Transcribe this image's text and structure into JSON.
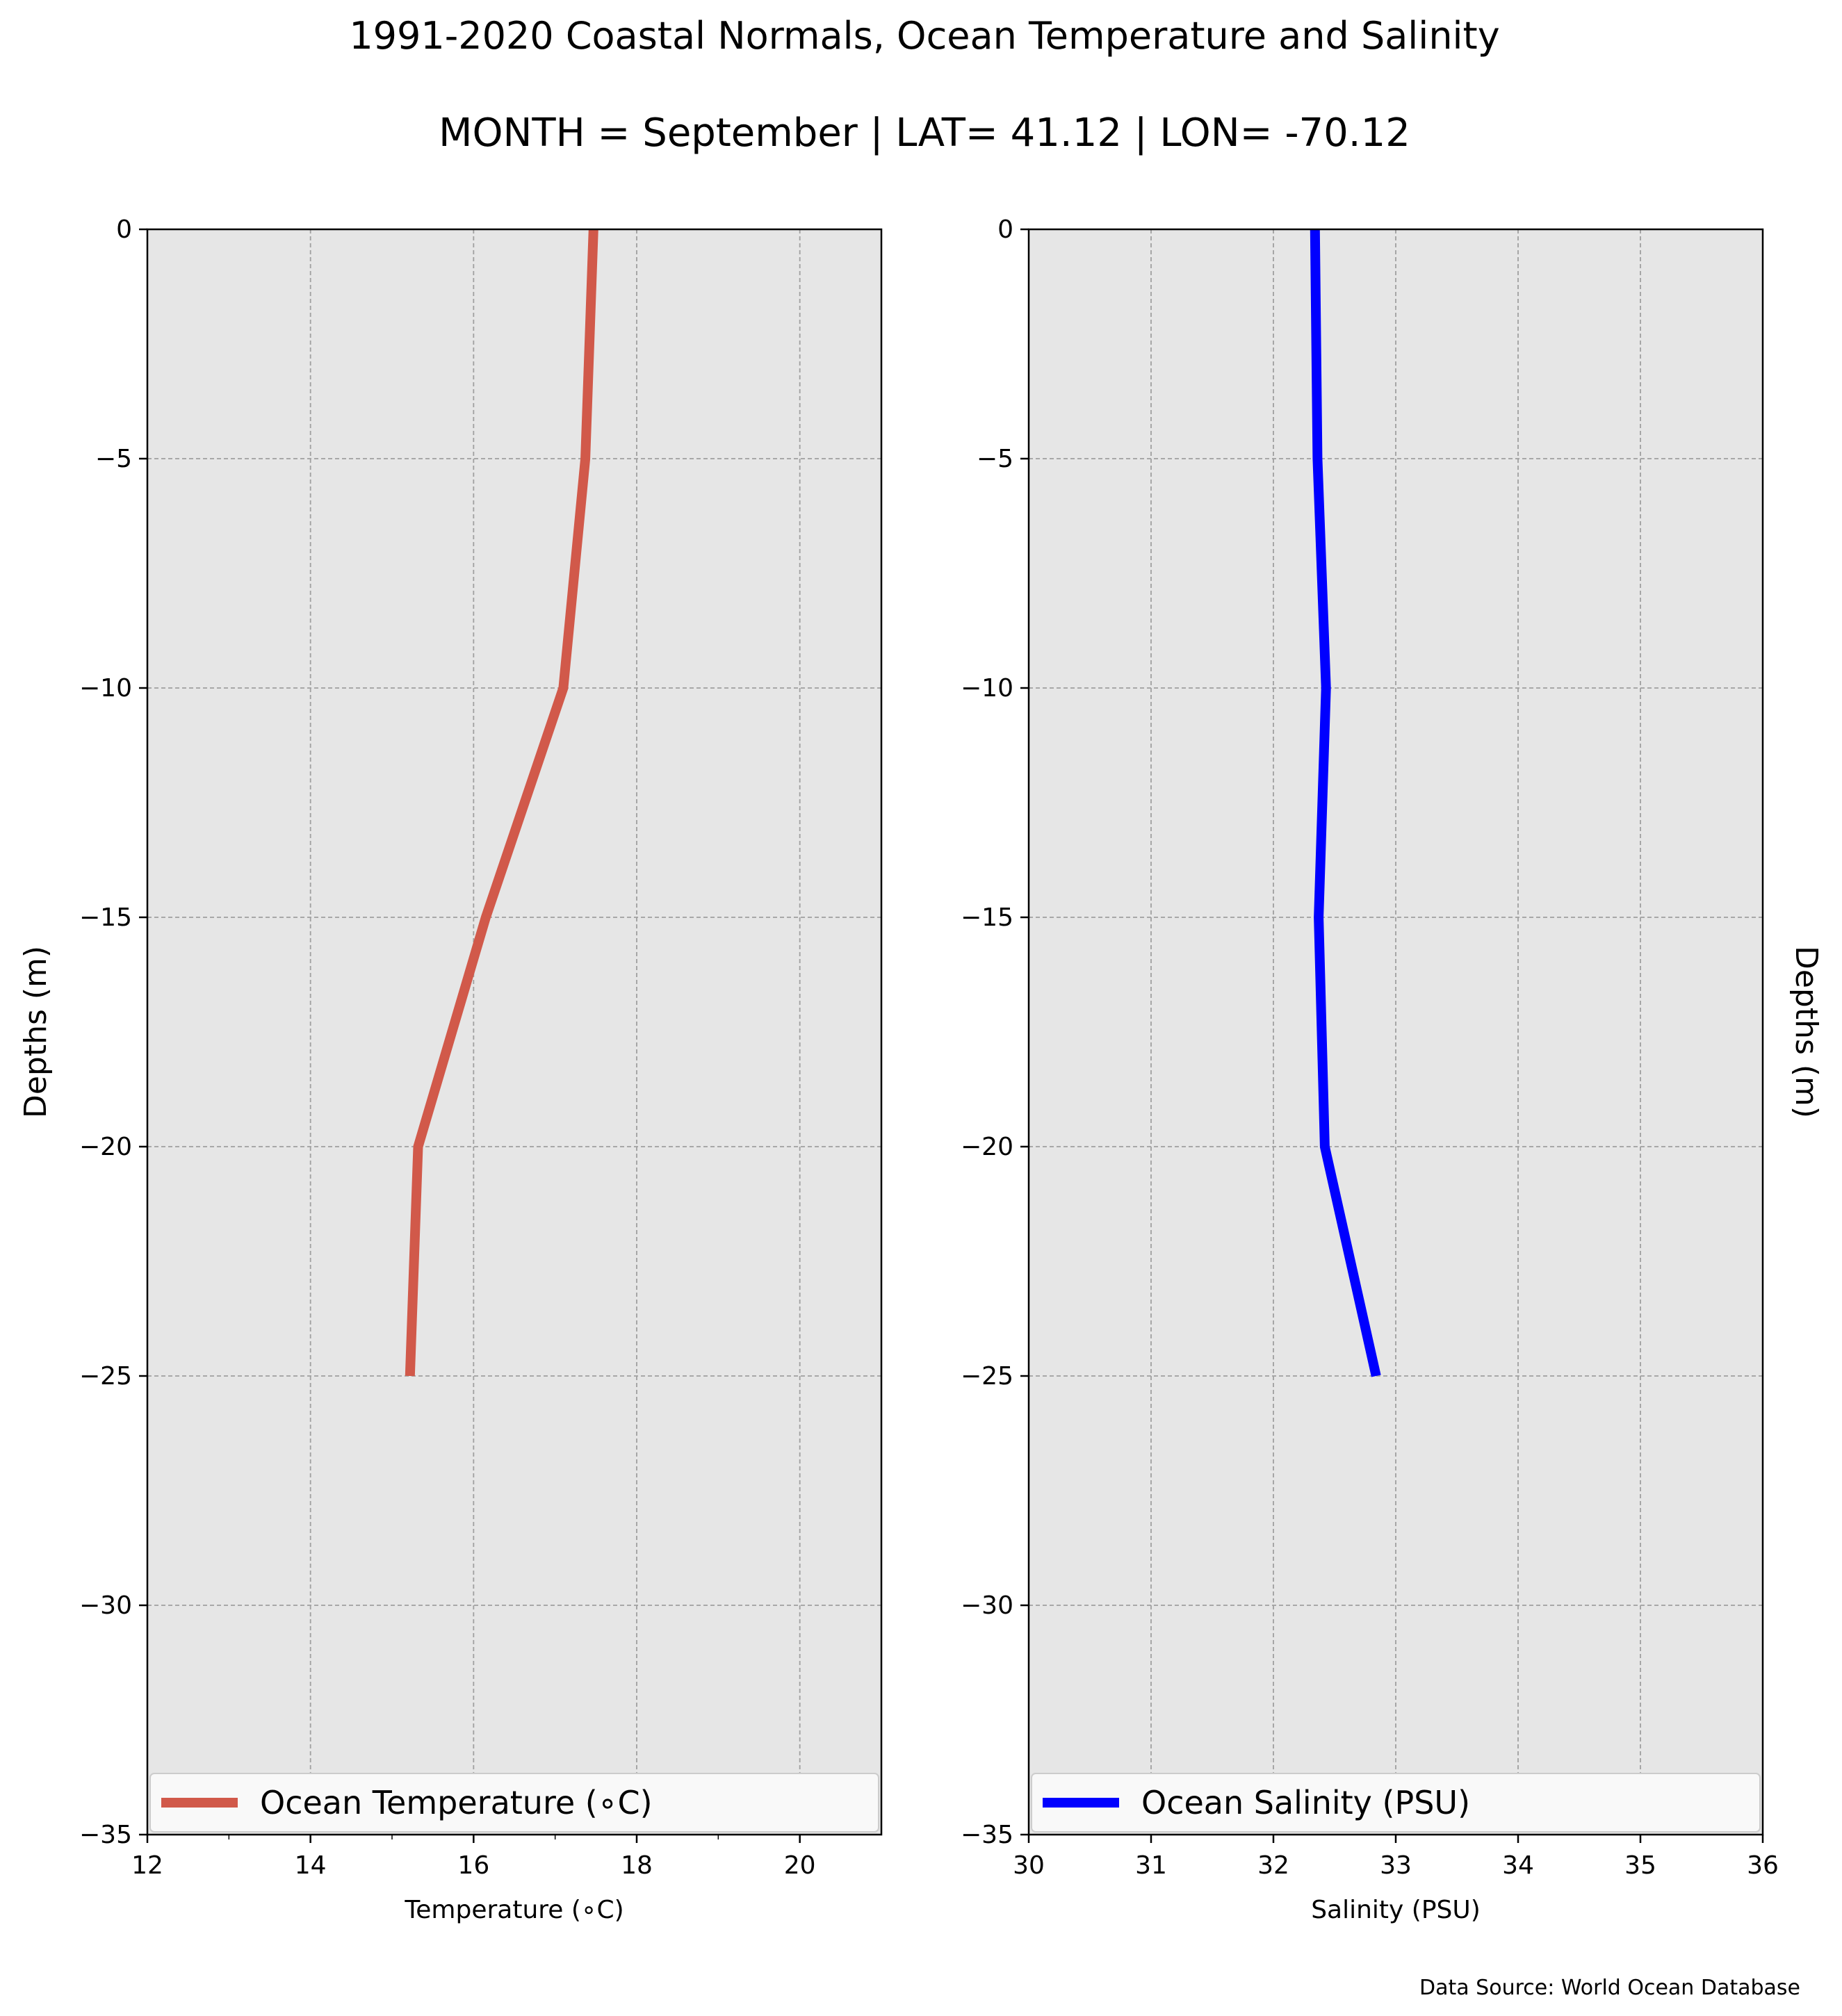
{
  "figure": {
    "title_line1": "1991-2020 Coastal Normals, Ocean Temperature and Salinity",
    "title_line2": "MONTH = September | LAT= 41.12 | LON= -70.12",
    "source_note": "Data Source: World Ocean Database"
  },
  "chart_data": [
    {
      "type": "line",
      "xlabel": "Temperature (∘C)",
      "ylabel": "Depths (m)",
      "xlim": [
        12,
        21
      ],
      "ylim": [
        -35,
        0
      ],
      "xticks": [
        12,
        14,
        16,
        18,
        20
      ],
      "xtick_labels": [
        "12",
        "14",
        "16",
        "18",
        "20"
      ],
      "yticks": [
        0,
        -5,
        -10,
        -15,
        -20,
        -25,
        -30,
        -35
      ],
      "ytick_labels": [
        "0",
        "−5",
        "−10",
        "−15",
        "−20",
        "−25",
        "−30",
        "−35"
      ],
      "grid": true,
      "legend_location": "lower-center",
      "series": [
        {
          "name": "Ocean Temperature (∘C)",
          "color": "#d1594a",
          "x": [
            17.47,
            17.37,
            17.1,
            16.15,
            15.32,
            15.22
          ],
          "y": [
            0,
            -5,
            -10,
            -15,
            -20,
            -25
          ]
        }
      ]
    },
    {
      "type": "line",
      "xlabel": "Salinity (PSU)",
      "ylabel": "Depths (m)",
      "xlim": [
        30,
        36
      ],
      "ylim": [
        -35,
        0
      ],
      "xticks": [
        30,
        31,
        32,
        33,
        34,
        35,
        36
      ],
      "xtick_labels": [
        "30",
        "31",
        "32",
        "33",
        "34",
        "35",
        "36"
      ],
      "yticks": [
        0,
        -5,
        -10,
        -15,
        -20,
        -25,
        -30,
        -35
      ],
      "ytick_labels": [
        "0",
        "−5",
        "−10",
        "−15",
        "−20",
        "−25",
        "−30",
        "−35"
      ],
      "grid": true,
      "legend_location": "lower-center",
      "series": [
        {
          "name": "Ocean Salinity (PSU)",
          "color": "#0000ff",
          "x": [
            32.34,
            32.36,
            32.43,
            32.37,
            32.42,
            32.84
          ],
          "y": [
            0,
            -5,
            -10,
            -15,
            -20,
            -25
          ]
        }
      ]
    }
  ]
}
